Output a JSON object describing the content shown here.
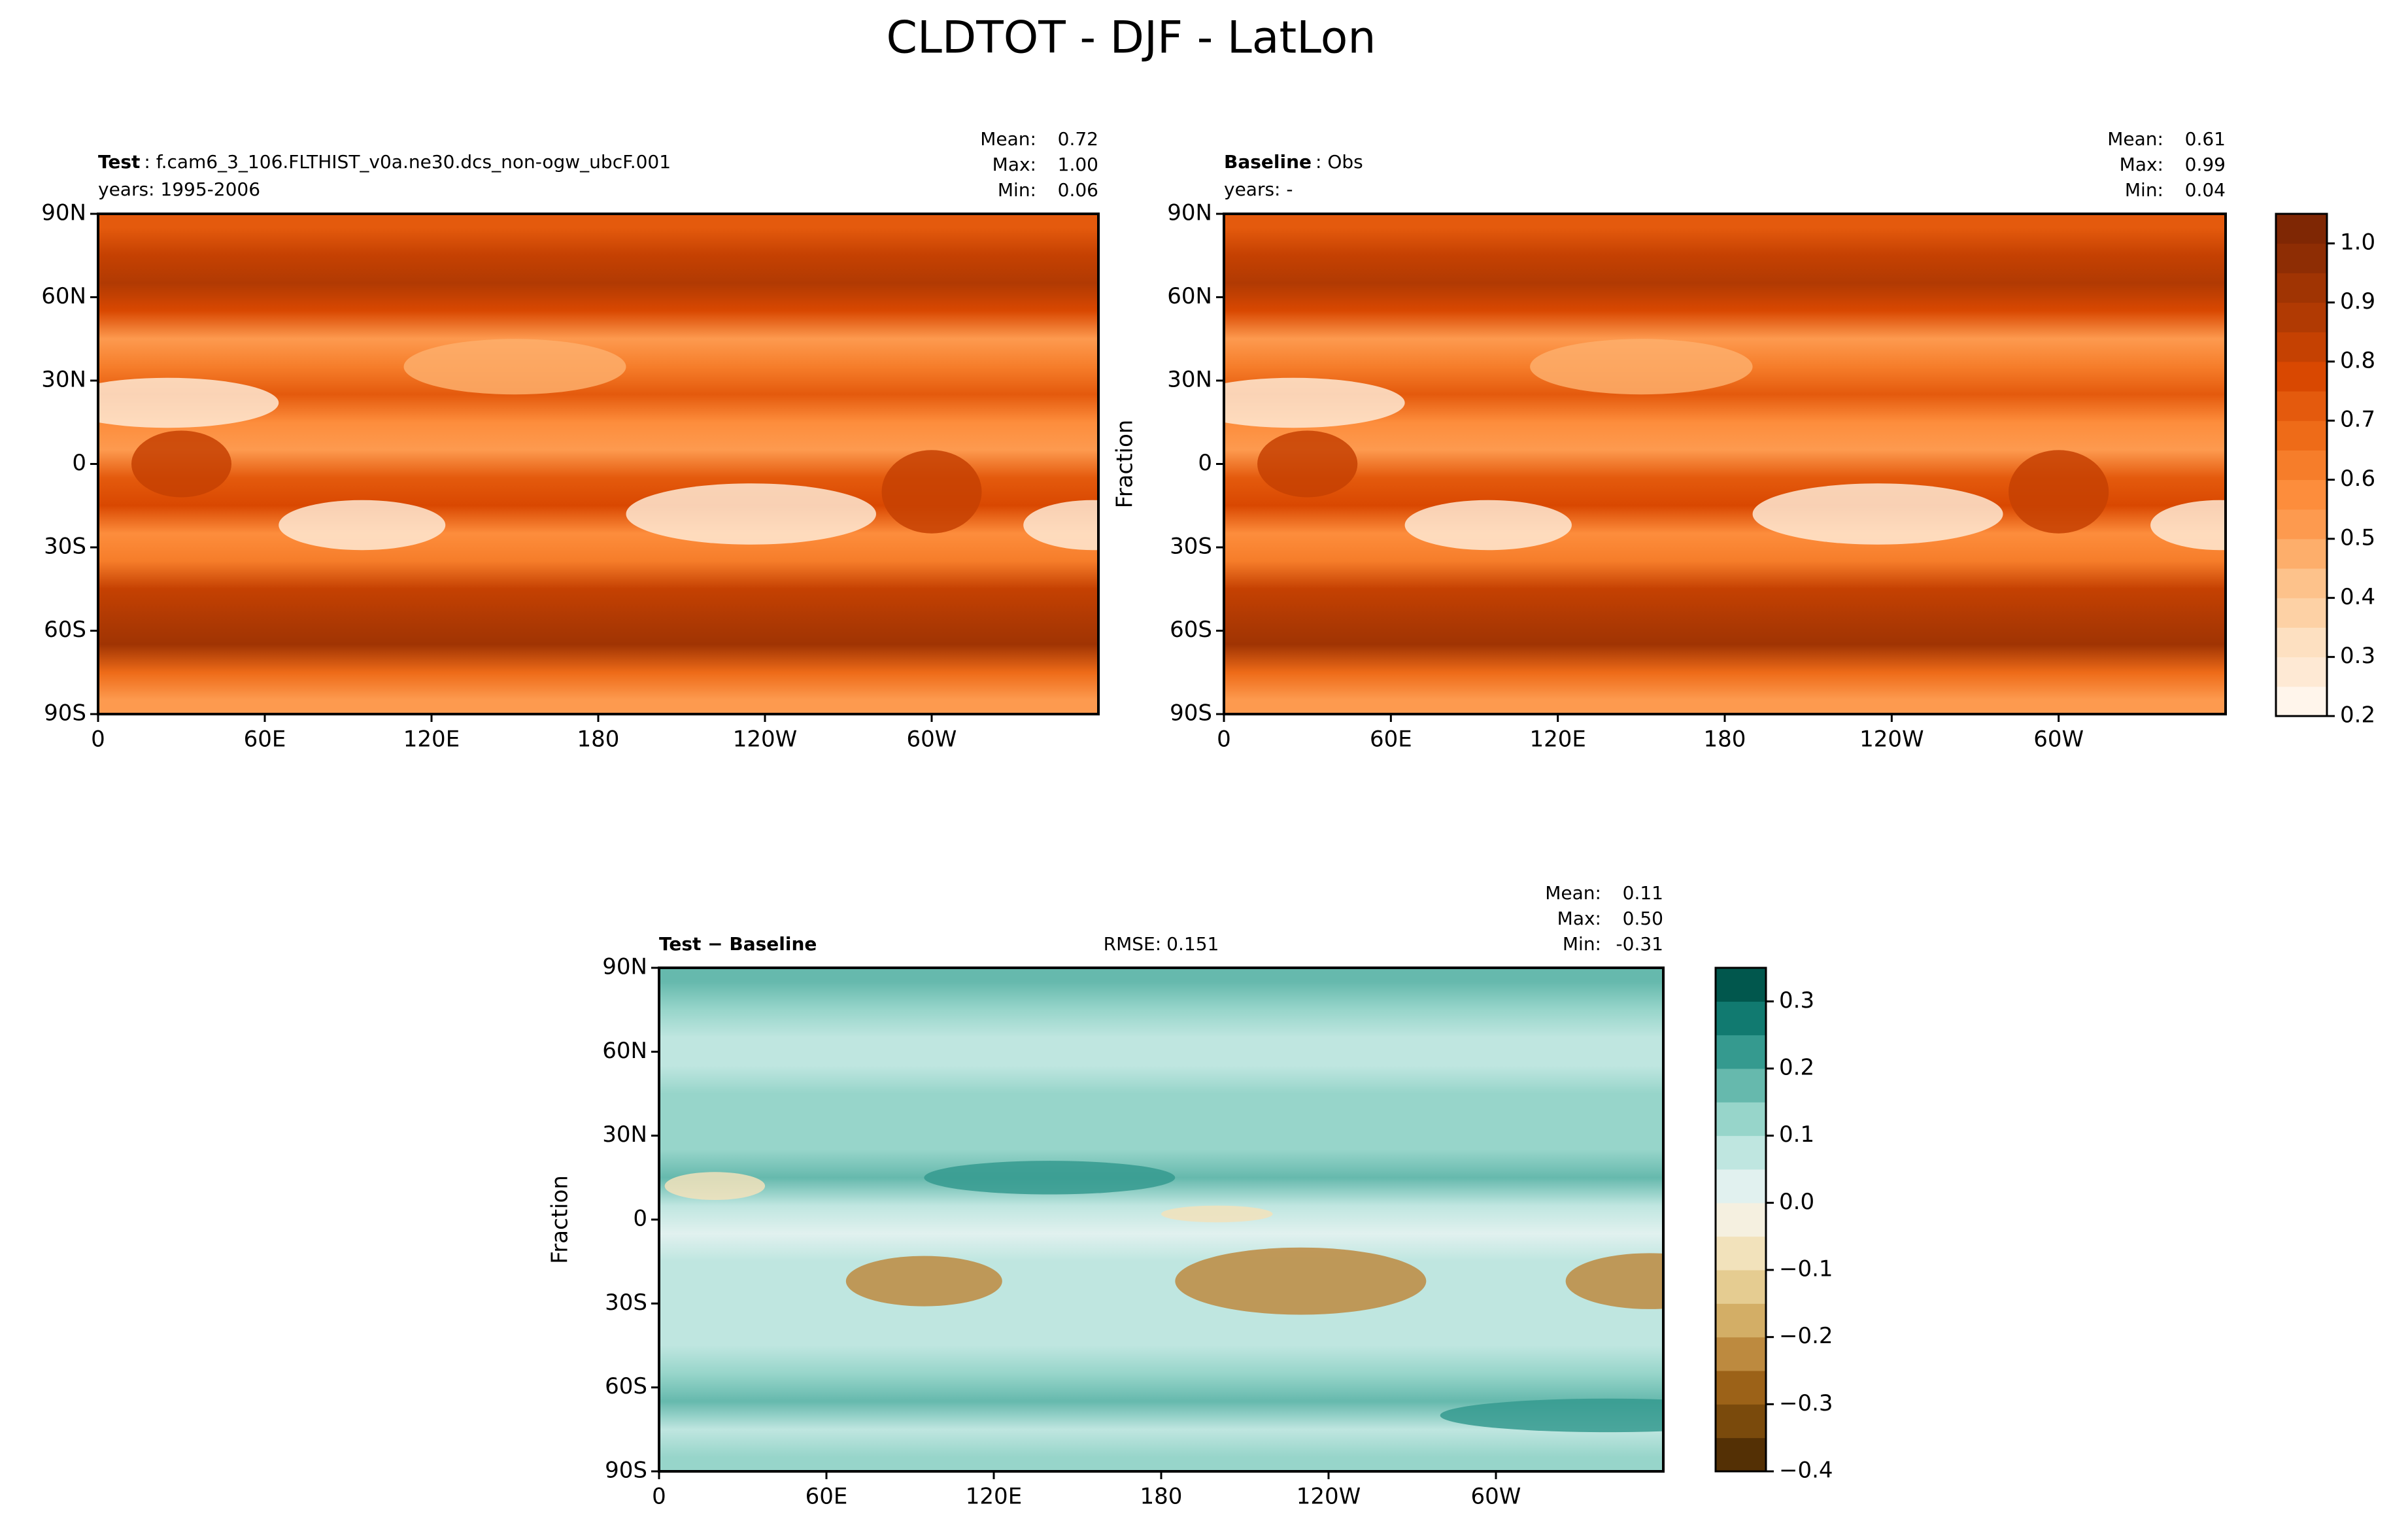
{
  "title": "CLDTOT - DJF - LatLon",
  "chart_data": [
    {
      "type": "map",
      "title": "Test",
      "title_detail": ": f.cam6_3_106.FLTHIST_v0a.ne30.dcs_non-ogw_ubcF.001",
      "years": "years: 1995-2006",
      "stats": {
        "names": [
          "Mean:",
          "Max:",
          "Min:"
        ],
        "values": [
          0.72,
          1.0,
          0.06
        ],
        "value_labels": [
          "0.72",
          "1.00",
          "0.06"
        ]
      },
      "xlim": [
        0,
        360
      ],
      "ylim": [
        -90,
        90
      ],
      "xticks": [
        0,
        {
          "value": 60,
          "label": "60E"
        },
        {
          "value": 120,
          "label": "120E"
        },
        180,
        {
          "value": 240,
          "label": "120W"
        },
        {
          "value": 300,
          "label": "60W"
        }
      ],
      "yticks": [
        {
          "value": -90,
          "label": "90S"
        },
        {
          "value": -60,
          "label": "60S"
        },
        {
          "value": -30,
          "label": "30S"
        },
        0,
        {
          "value": 30,
          "label": "30N"
        },
        {
          "value": 60,
          "label": "60N"
        },
        {
          "value": 90,
          "label": "90N"
        }
      ]
    },
    {
      "type": "map",
      "title": "Baseline",
      "title_detail": ": Obs",
      "years": "years: -",
      "ylabel": "Fraction",
      "stats": {
        "names": [
          "Mean:",
          "Max:",
          "Min:"
        ],
        "values": [
          0.61,
          0.99,
          0.04
        ],
        "value_labels": [
          "0.61",
          "0.99",
          "0.04"
        ]
      },
      "xlim": [
        0,
        360
      ],
      "ylim": [
        -90,
        90
      ],
      "xticks": [
        0,
        {
          "value": 60,
          "label": "60E"
        },
        {
          "value": 120,
          "label": "120E"
        },
        180,
        {
          "value": 240,
          "label": "120W"
        },
        {
          "value": 300,
          "label": "60W"
        }
      ],
      "yticks": [
        {
          "value": -90,
          "label": "90S"
        },
        {
          "value": -60,
          "label": "60S"
        },
        {
          "value": -30,
          "label": "30S"
        },
        0,
        {
          "value": 30,
          "label": "30N"
        },
        {
          "value": 60,
          "label": "60N"
        },
        {
          "value": 90,
          "label": "90N"
        }
      ],
      "colorbar": {
        "lim": [
          0.2,
          1.05
        ],
        "ticks": [
          0.2,
          0.3,
          0.4,
          0.5,
          0.6,
          0.7,
          0.8,
          0.9,
          {
            "value": 1,
            "label": "1.0"
          }
        ],
        "colors": [
          "#fff5eb",
          "#fee9d4",
          "#fde0c1",
          "#fdd1a5",
          "#fdc28b",
          "#fdae6b",
          "#fd9a4f",
          "#fd8d3c",
          "#f67d2a",
          "#ee6b18",
          "#e45a0d",
          "#d94801",
          "#c54102",
          "#b13a03",
          "#a03403",
          "#8e2d04",
          "#7f2704"
        ]
      }
    },
    {
      "type": "map",
      "title": "Test − Baseline",
      "rmse_label": "RMSE:",
      "rmse": 0.151,
      "ylabel": "Fraction",
      "stats": {
        "names": [
          "Mean:",
          "Max:",
          "Min:"
        ],
        "values": [
          0.11,
          0.5,
          -0.31
        ],
        "value_labels": [
          "0.11",
          "0.50",
          "-0.31"
        ]
      },
      "xlim": [
        0,
        360
      ],
      "ylim": [
        -90,
        90
      ],
      "xticks": [
        0,
        {
          "value": 60,
          "label": "60E"
        },
        {
          "value": 120,
          "label": "120E"
        },
        180,
        {
          "value": 240,
          "label": "120W"
        },
        {
          "value": 300,
          "label": "60W"
        }
      ],
      "yticks": [
        {
          "value": -90,
          "label": "90S"
        },
        {
          "value": -60,
          "label": "60S"
        },
        {
          "value": -30,
          "label": "30S"
        },
        0,
        {
          "value": 30,
          "label": "30N"
        },
        {
          "value": 60,
          "label": "60N"
        },
        {
          "value": 90,
          "label": "90N"
        }
      ],
      "colorbar": {
        "lim": [
          -0.4,
          0.35
        ],
        "ticks": [
          {
            "value": -0.4,
            "label": "−0.4"
          },
          {
            "value": -0.3,
            "label": "−0.3"
          },
          {
            "value": -0.2,
            "label": "−0.2"
          },
          {
            "value": -0.1,
            "label": "−0.1"
          },
          {
            "value": 0,
            "label": "0.0"
          },
          0.1,
          0.2,
          0.3
        ],
        "colors": [
          "#543005",
          "#7a4a0c",
          "#9c6218",
          "#bd8a3f",
          "#d3ae66",
          "#e5cc91",
          "#f2e2bb",
          "#f5f0e0",
          "#e1f1ef",
          "#bfe6e0",
          "#97d5ca",
          "#66b9ad",
          "#359a8f",
          "#117a70",
          "#01574d"
        ]
      }
    }
  ]
}
